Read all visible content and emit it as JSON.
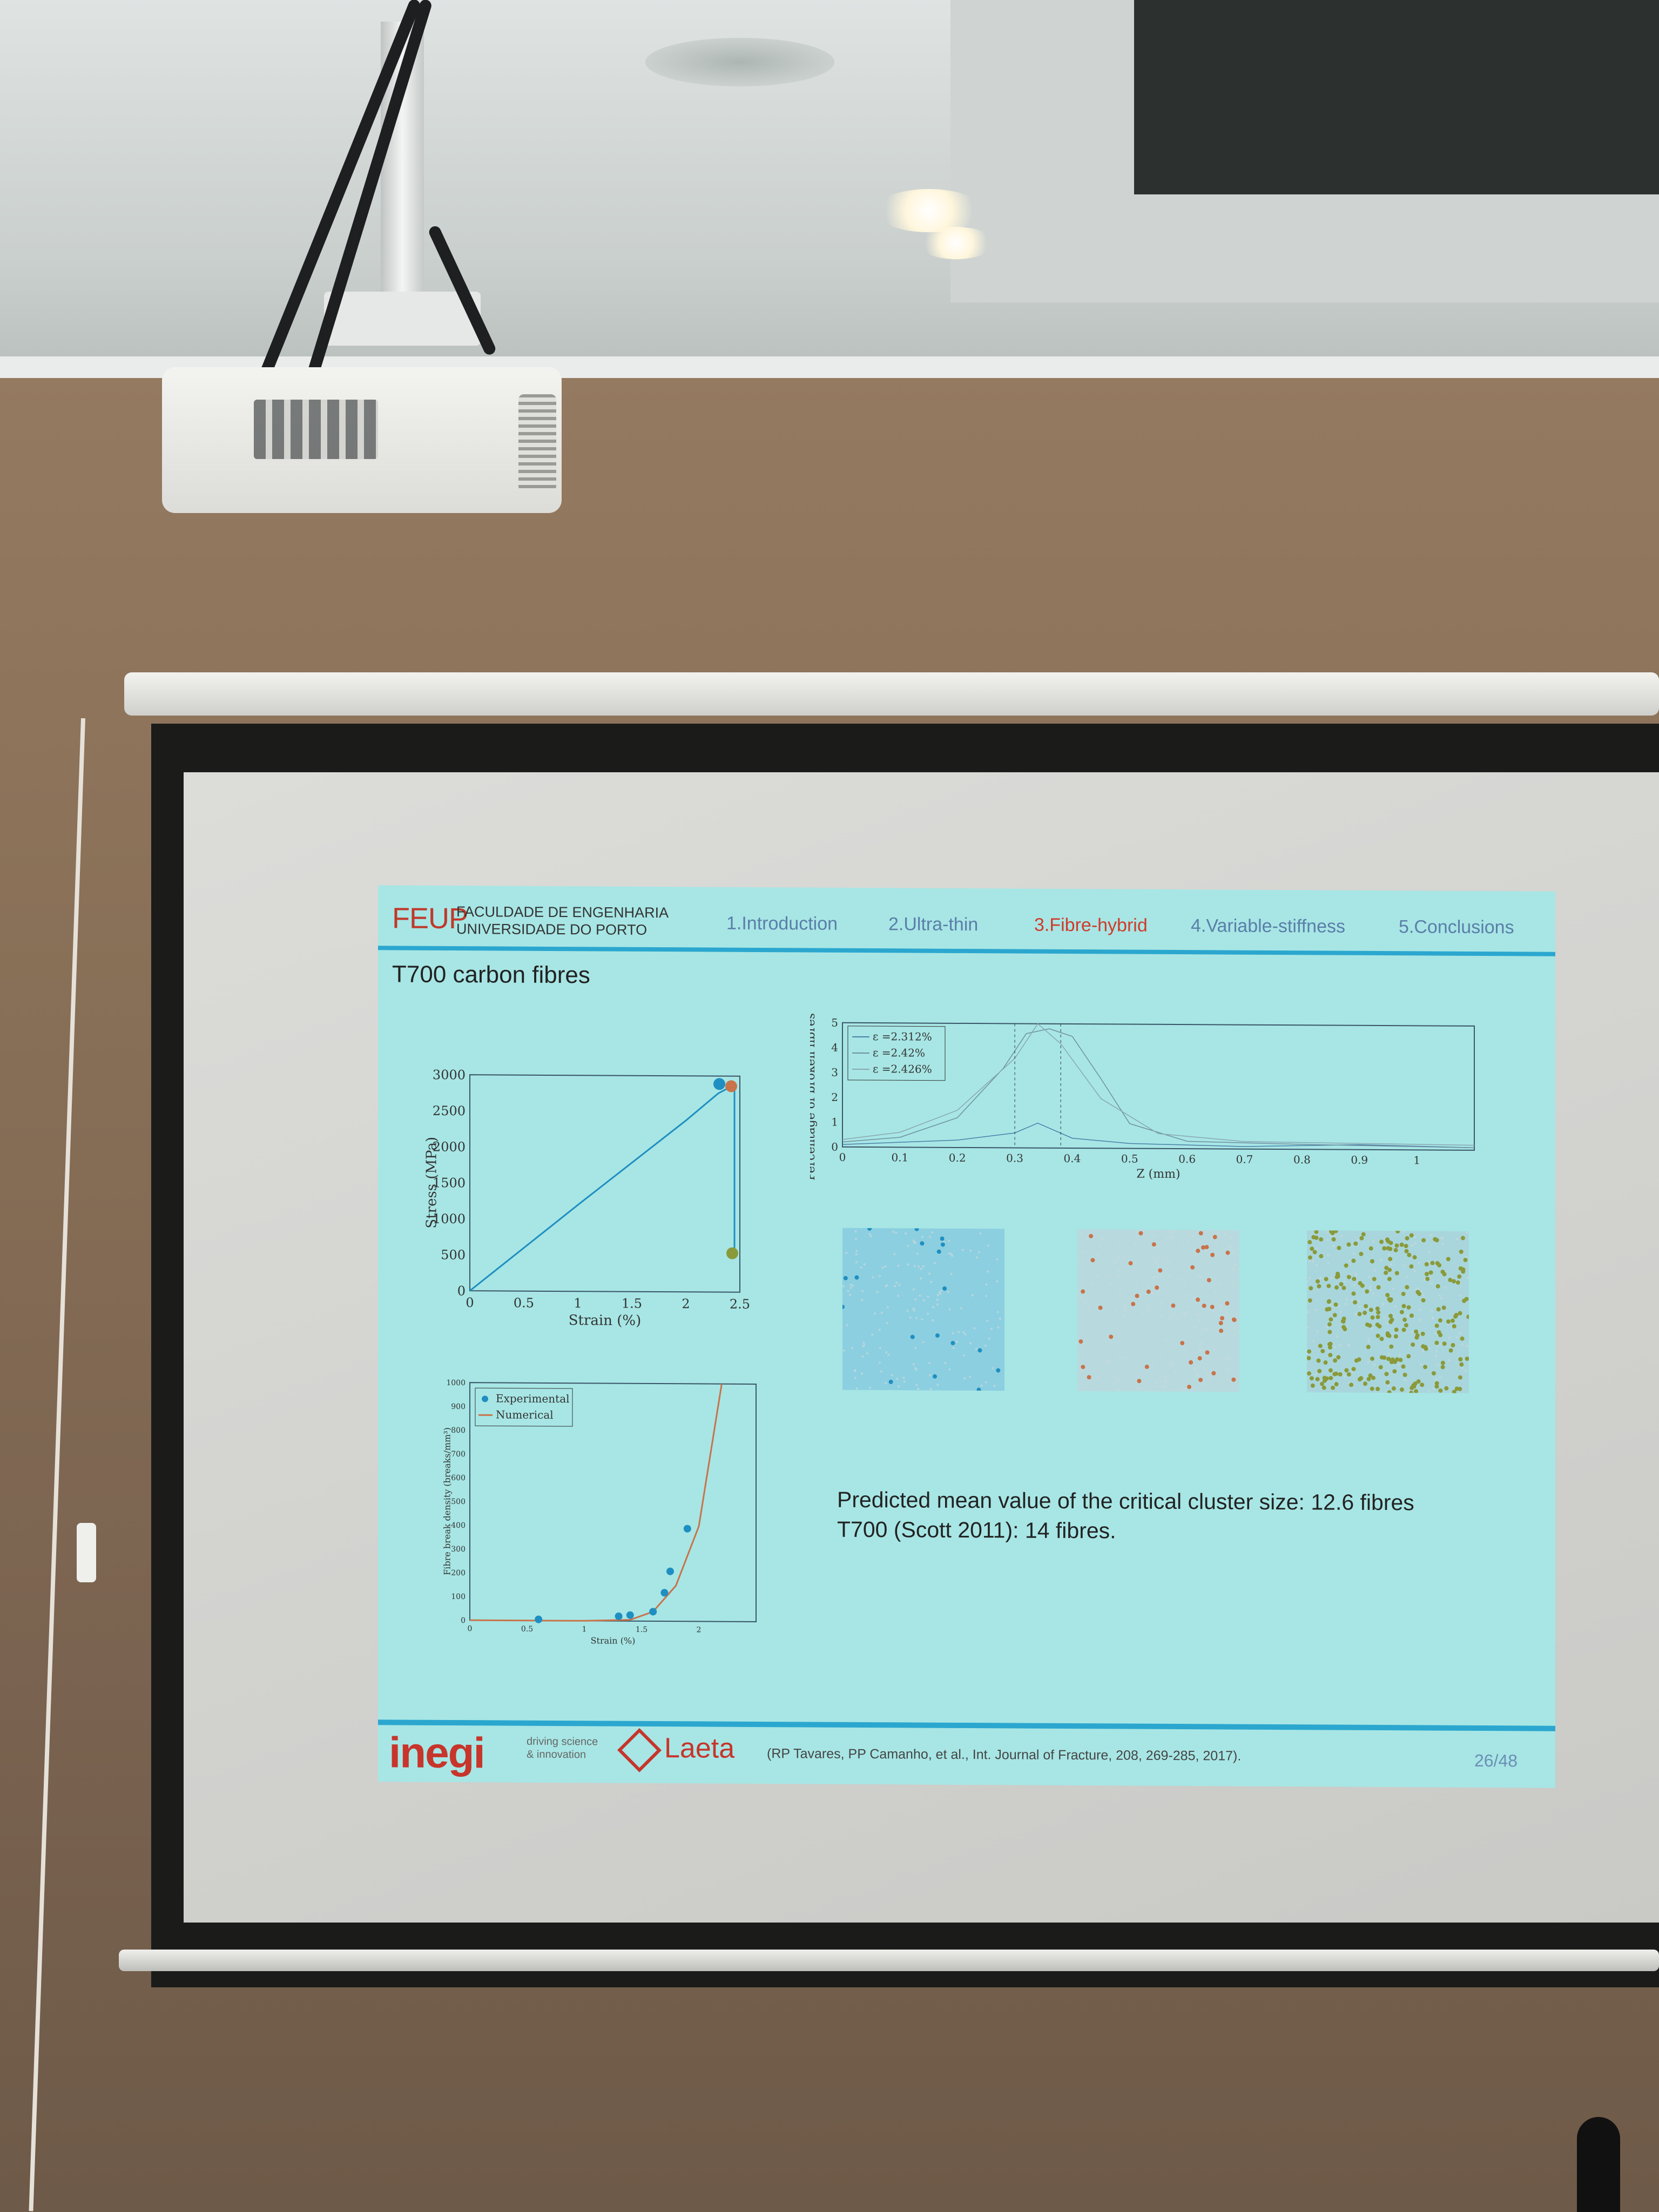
{
  "slide": {
    "header": {
      "logo": "FEUP",
      "faculty_line1": "FACULDADE DE ENGENHARIA",
      "faculty_line2": "UNIVERSIDADE DO PORTO",
      "nav": [
        "1.Introduction",
        "2.Ultra-thin",
        "3.Fibre-hybrid",
        "4.Variable-stiffness",
        "5.Conclusions"
      ],
      "active_nav": "3.Fibre-hybrid"
    },
    "title": "T700 carbon fibres",
    "text_line1": "Predicted mean value of the critical cluster size: 12.6 fibres",
    "text_line2": "T700 (Scott 2011): 14 fibres.",
    "footer": {
      "ineqi": "inegi",
      "ineqi_tagline1": "driving science",
      "ineqi_tagline2": "& innovation",
      "laeta": "Laeta",
      "citation": "(RP Tavares, PP Camanho, et al., Int. Journal of Fracture, 208, 269-285, 2017).",
      "page": "26/48"
    },
    "colors": {
      "slide_bg": "#a7e6e5",
      "accent_rule": "#2ba7cf",
      "active_nav": "#d03a2a",
      "nav": "#5a7ea8",
      "series_blue": "#1f8fc1",
      "series_orange": "#c9734a",
      "series_green": "#8a9a3a"
    }
  },
  "chart_data": [
    {
      "type": "line",
      "xlabel": "Strain (%)",
      "ylabel": "Stress (MPa)",
      "xlim": [
        0,
        2.5
      ],
      "ylim": [
        0,
        3000
      ],
      "xticks": [
        "0",
        "0.5",
        "1",
        "1.5",
        "2",
        "2.5"
      ],
      "yticks": [
        "0",
        "500",
        "1000",
        "1500",
        "2000",
        "2500",
        "3000"
      ],
      "series": [
        {
          "values": [
            [
              0,
              0
            ],
            [
              0.5,
              600
            ],
            [
              1.0,
              1200
            ],
            [
              1.5,
              1790
            ],
            [
              2.0,
              2380
            ],
            [
              2.3,
              2760
            ],
            [
              2.45,
              2880
            ],
            [
              2.45,
              500
            ]
          ]
        }
      ],
      "markers": [
        {
          "x": 2.31,
          "y": 2890,
          "color": "#1f8fc1"
        },
        {
          "x": 2.42,
          "y": 2860,
          "color": "#c9734a"
        },
        {
          "x": 2.43,
          "y": 540,
          "color": "#8a9a3a"
        }
      ]
    },
    {
      "type": "line",
      "xlabel": "Z (mm)",
      "ylabel": "Percentage of broken fibres (%)",
      "xlim": [
        0,
        1.1
      ],
      "ylim": [
        0,
        5
      ],
      "xticks": [
        "0",
        "0.1",
        "0.2",
        "0.3",
        "0.4",
        "0.5",
        "0.6",
        "0.7",
        "0.8",
        "0.9",
        "1"
      ],
      "yticks": [
        "0",
        "1",
        "2",
        "3",
        "4",
        "5"
      ],
      "legend": [
        "ε =2.312%",
        "ε =2.42%",
        "ε =2.426%"
      ],
      "legend_position": "top-left",
      "series": [
        {
          "name": "ε =2.312%",
          "values": [
            [
              0,
              0.1
            ],
            [
              0.1,
              0.2
            ],
            [
              0.2,
              0.3
            ],
            [
              0.3,
              0.6
            ],
            [
              0.34,
              1.0
            ],
            [
              0.4,
              0.4
            ],
            [
              0.5,
              0.2
            ],
            [
              0.7,
              0.1
            ],
            [
              0.9,
              0.2
            ],
            [
              1.1,
              0.1
            ]
          ]
        },
        {
          "name": "ε =2.42%",
          "values": [
            [
              0,
              0.2
            ],
            [
              0.1,
              0.4
            ],
            [
              0.2,
              1.2
            ],
            [
              0.28,
              3.2
            ],
            [
              0.32,
              4.6
            ],
            [
              0.36,
              4.8
            ],
            [
              0.4,
              4.5
            ],
            [
              0.45,
              2.8
            ],
            [
              0.5,
              1.0
            ],
            [
              0.6,
              0.3
            ],
            [
              0.8,
              0.2
            ],
            [
              1.1,
              0.1
            ]
          ]
        },
        {
          "name": "ε =2.426%",
          "values": [
            [
              0,
              0.3
            ],
            [
              0.1,
              0.6
            ],
            [
              0.2,
              1.5
            ],
            [
              0.3,
              3.6
            ],
            [
              0.34,
              5.0
            ],
            [
              0.38,
              4.2
            ],
            [
              0.45,
              2.0
            ],
            [
              0.55,
              0.6
            ],
            [
              0.7,
              0.3
            ],
            [
              1.1,
              0.2
            ]
          ]
        }
      ]
    },
    {
      "type": "scatter",
      "xlabel": "Strain (%)",
      "ylabel": "Fibre break density (breaks/mm³)",
      "xlim": [
        0,
        2.5
      ],
      "ylim": [
        0,
        1000
      ],
      "xticks": [
        "0",
        "0.5",
        "1",
        "1.5",
        "2"
      ],
      "yticks": [
        "0",
        "100",
        "200",
        "300",
        "400",
        "500",
        "600",
        "700",
        "800",
        "900",
        "1000"
      ],
      "legend": [
        "Experimental",
        "Numerical"
      ],
      "legend_position": "top-left",
      "series": [
        {
          "name": "Experimental",
          "values": [
            [
              0.6,
              5
            ],
            [
              1.3,
              20
            ],
            [
              1.4,
              25
            ],
            [
              1.6,
              40
            ],
            [
              1.7,
              120
            ],
            [
              1.75,
              210
            ],
            [
              1.9,
              390
            ]
          ]
        },
        {
          "name": "Numerical",
          "values": [
            [
              0,
              0
            ],
            [
              1.0,
              0
            ],
            [
              1.4,
              5
            ],
            [
              1.6,
              40
            ],
            [
              1.8,
              150
            ],
            [
              2.0,
              400
            ],
            [
              2.1,
              700
            ],
            [
              2.2,
              1000
            ]
          ]
        }
      ]
    }
  ]
}
